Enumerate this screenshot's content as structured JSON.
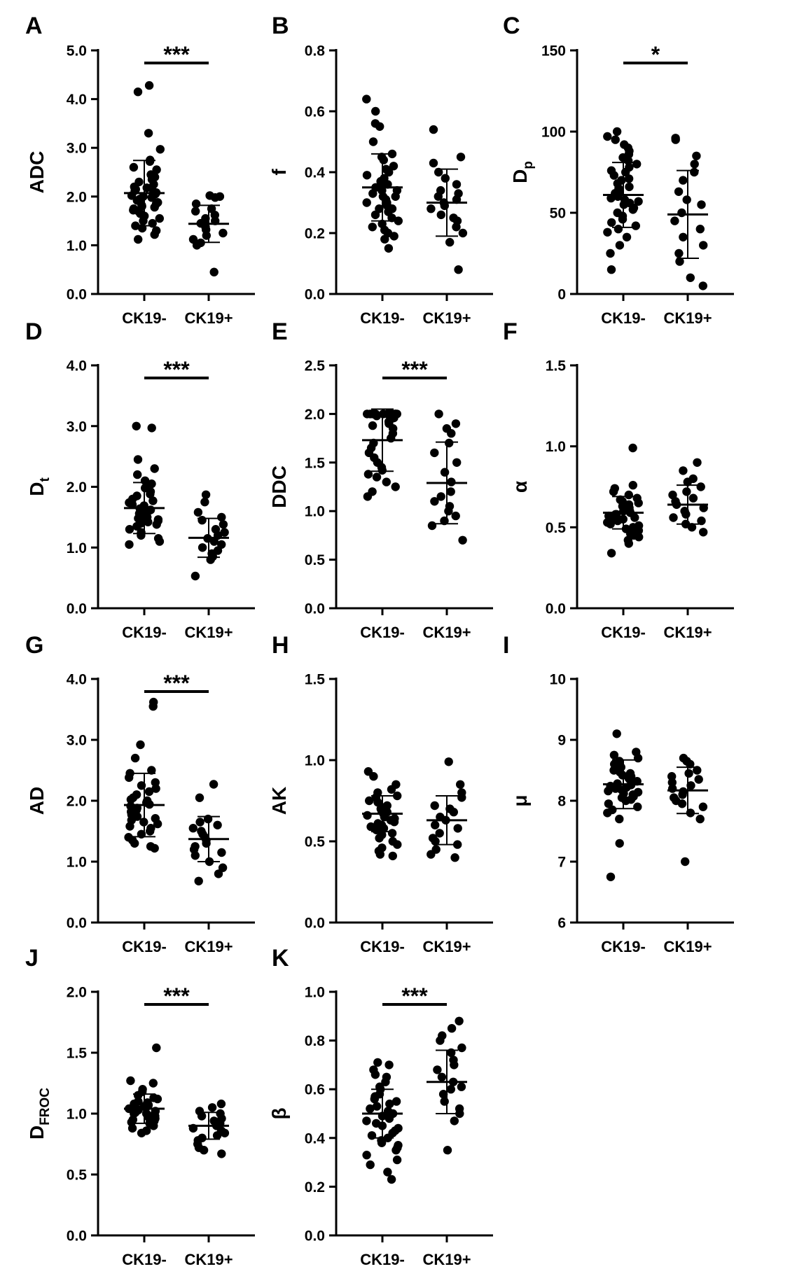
{
  "chart_data": [
    {
      "type": "scatter",
      "panel": "A",
      "ylabel": "ADC",
      "ylabel_sub": "",
      "ylim": [
        0,
        5
      ],
      "yticks": [
        0,
        1,
        2,
        3,
        4,
        5
      ],
      "ytick_labels": [
        "0.0",
        "1.0",
        "2.0",
        "3.0",
        "4.0",
        "5.0"
      ],
      "categories": [
        "CK19-",
        "CK19+"
      ],
      "significance": "***",
      "groups": [
        {
          "mean": 2.07,
          "sd": 0.67,
          "values": [
            4.28,
            4.15,
            3.3,
            2.97,
            2.75,
            2.72,
            2.6,
            2.55,
            2.45,
            2.4,
            2.35,
            2.3,
            2.25,
            2.2,
            2.18,
            2.15,
            2.12,
            2.1,
            2.08,
            2.05,
            2.02,
            2.0,
            1.98,
            1.95,
            1.92,
            1.9,
            1.88,
            1.85,
            1.82,
            1.8,
            1.78,
            1.75,
            1.72,
            1.7,
            1.65,
            1.6,
            1.55,
            1.5,
            1.45,
            1.4,
            1.35,
            1.3,
            1.22,
            1.12
          ]
        },
        {
          "mean": 1.44,
          "sd": 0.38,
          "values": [
            2.02,
            2.0,
            1.98,
            1.85,
            1.75,
            1.7,
            1.62,
            1.55,
            1.5,
            1.45,
            1.42,
            1.38,
            1.32,
            1.25,
            1.2,
            1.12,
            1.05,
            1.0,
            0.45
          ]
        }
      ]
    },
    {
      "type": "scatter",
      "panel": "B",
      "ylabel": "f",
      "ylabel_sub": "",
      "ylim": [
        0,
        0.8
      ],
      "yticks": [
        0,
        0.2,
        0.4,
        0.6,
        0.8
      ],
      "ytick_labels": [
        "0.0",
        "0.2",
        "0.4",
        "0.6",
        "0.8"
      ],
      "categories": [
        "CK19-",
        "CK19+"
      ],
      "significance": "",
      "groups": [
        {
          "mean": 0.35,
          "sd": 0.11,
          "values": [
            0.64,
            0.6,
            0.56,
            0.55,
            0.5,
            0.46,
            0.45,
            0.44,
            0.42,
            0.41,
            0.4,
            0.39,
            0.38,
            0.37,
            0.36,
            0.36,
            0.35,
            0.34,
            0.34,
            0.33,
            0.32,
            0.32,
            0.31,
            0.3,
            0.3,
            0.29,
            0.28,
            0.28,
            0.27,
            0.26,
            0.25,
            0.24,
            0.23,
            0.22,
            0.21,
            0.2,
            0.19,
            0.18,
            0.15
          ]
        },
        {
          "mean": 0.3,
          "sd": 0.11,
          "values": [
            0.54,
            0.45,
            0.43,
            0.4,
            0.38,
            0.36,
            0.34,
            0.33,
            0.32,
            0.31,
            0.3,
            0.29,
            0.28,
            0.26,
            0.25,
            0.24,
            0.22,
            0.2,
            0.17,
            0.08
          ]
        }
      ]
    },
    {
      "type": "scatter",
      "panel": "C",
      "ylabel": "D",
      "ylabel_sub": "p",
      "ylim": [
        0,
        150
      ],
      "yticks": [
        0,
        50,
        100,
        150
      ],
      "ytick_labels": [
        "0",
        "50",
        "100",
        "150"
      ],
      "categories": [
        "CK19-",
        "CK19+"
      ],
      "significance": "*",
      "groups": [
        {
          "mean": 61,
          "sd": 20,
          "values": [
            100,
            97,
            95,
            92,
            90,
            88,
            86,
            84,
            82,
            80,
            78,
            76,
            75,
            73,
            71,
            70,
            68,
            66,
            65,
            63,
            62,
            60,
            59,
            58,
            57,
            56,
            55,
            53,
            52,
            50,
            48,
            46,
            44,
            42,
            40,
            38,
            35,
            30,
            25,
            15
          ]
        },
        {
          "mean": 49,
          "sd": 27,
          "values": [
            96,
            95,
            85,
            80,
            75,
            70,
            63,
            58,
            55,
            50,
            45,
            40,
            35,
            30,
            25,
            20,
            10,
            5
          ]
        }
      ]
    },
    {
      "type": "scatter",
      "panel": "D",
      "ylabel": "D",
      "ylabel_sub": "t",
      "ylim": [
        0,
        4
      ],
      "yticks": [
        0,
        1,
        2,
        3,
        4
      ],
      "ytick_labels": [
        "0.0",
        "1.0",
        "2.0",
        "3.0",
        "4.0"
      ],
      "categories": [
        "CK19-",
        "CK19+"
      ],
      "significance": "***",
      "groups": [
        {
          "mean": 1.65,
          "sd": 0.42,
          "values": [
            3.0,
            2.97,
            2.45,
            2.3,
            2.2,
            2.1,
            2.05,
            1.98,
            1.92,
            1.88,
            1.85,
            1.8,
            1.77,
            1.74,
            1.71,
            1.69,
            1.66,
            1.64,
            1.62,
            1.6,
            1.58,
            1.56,
            1.54,
            1.52,
            1.5,
            1.48,
            1.46,
            1.44,
            1.42,
            1.4,
            1.38,
            1.35,
            1.3,
            1.25,
            1.2,
            1.15,
            1.1,
            1.05
          ]
        },
        {
          "mean": 1.16,
          "sd": 0.32,
          "values": [
            1.87,
            1.75,
            1.58,
            1.5,
            1.45,
            1.38,
            1.3,
            1.25,
            1.2,
            1.15,
            1.1,
            1.05,
            1.0,
            0.95,
            0.9,
            0.85,
            0.8,
            0.53
          ]
        }
      ]
    },
    {
      "type": "scatter",
      "panel": "E",
      "ylabel": "DDC",
      "ylabel_sub": "",
      "ylim": [
        0,
        2.5
      ],
      "yticks": [
        0,
        0.5,
        1.0,
        1.5,
        2.0,
        2.5
      ],
      "ytick_labels": [
        "0.0",
        "0.5",
        "1.0",
        "1.5",
        "2.0",
        "2.5"
      ],
      "categories": [
        "CK19-",
        "CK19+"
      ],
      "significance": "***",
      "groups": [
        {
          "mean": 1.73,
          "sd": 0.32,
          "values": [
            2.0,
            2.0,
            2.0,
            2.0,
            2.0,
            2.0,
            2.0,
            2.0,
            2.0,
            2.0,
            2.0,
            2.0,
            2.0,
            2.0,
            2.0,
            2.0,
            1.98,
            1.96,
            1.95,
            1.92,
            1.9,
            1.88,
            1.85,
            1.8,
            1.75,
            1.7,
            1.65,
            1.6,
            1.55,
            1.5,
            1.45,
            1.42,
            1.38,
            1.35,
            1.3,
            1.25,
            1.2,
            1.15
          ]
        },
        {
          "mean": 1.29,
          "sd": 0.42,
          "values": [
            2.0,
            1.9,
            1.85,
            1.8,
            1.7,
            1.6,
            1.5,
            1.4,
            1.3,
            1.2,
            1.15,
            1.1,
            1.05,
            1.0,
            0.95,
            0.9,
            0.85,
            0.7
          ]
        }
      ]
    },
    {
      "type": "scatter",
      "panel": "F",
      "ylabel": "α",
      "ylabel_sub": "",
      "ylim": [
        0,
        1.5
      ],
      "yticks": [
        0,
        0.5,
        1.0,
        1.5
      ],
      "ytick_labels": [
        "0.0",
        "0.5",
        "1.0",
        "1.5"
      ],
      "categories": [
        "CK19-",
        "CK19+"
      ],
      "significance": "",
      "groups": [
        {
          "mean": 0.59,
          "sd": 0.1,
          "values": [
            0.99,
            0.76,
            0.74,
            0.72,
            0.7,
            0.68,
            0.67,
            0.66,
            0.65,
            0.64,
            0.63,
            0.62,
            0.61,
            0.6,
            0.6,
            0.59,
            0.58,
            0.58,
            0.57,
            0.56,
            0.56,
            0.55,
            0.54,
            0.53,
            0.52,
            0.51,
            0.5,
            0.49,
            0.48,
            0.47,
            0.46,
            0.45,
            0.44,
            0.42,
            0.4,
            0.34
          ]
        },
        {
          "mean": 0.64,
          "sd": 0.12,
          "values": [
            0.9,
            0.85,
            0.8,
            0.78,
            0.75,
            0.72,
            0.7,
            0.68,
            0.66,
            0.64,
            0.62,
            0.6,
            0.58,
            0.56,
            0.54,
            0.52,
            0.5,
            0.47
          ]
        }
      ]
    },
    {
      "type": "scatter",
      "panel": "G",
      "ylabel": "AD",
      "ylabel_sub": "",
      "ylim": [
        0,
        4
      ],
      "yticks": [
        0,
        1,
        2,
        3,
        4
      ],
      "ytick_labels": [
        "0.0",
        "1.0",
        "2.0",
        "3.0",
        "4.0"
      ],
      "categories": [
        "CK19-",
        "CK19+"
      ],
      "significance": "***",
      "groups": [
        {
          "mean": 1.93,
          "sd": 0.52,
          "values": [
            3.62,
            3.55,
            2.92,
            2.7,
            2.5,
            2.45,
            2.38,
            2.3,
            2.25,
            2.2,
            2.15,
            2.1,
            2.05,
            2.02,
            2.0,
            1.97,
            1.94,
            1.91,
            1.88,
            1.85,
            1.82,
            1.8,
            1.77,
            1.74,
            1.71,
            1.68,
            1.65,
            1.62,
            1.58,
            1.55,
            1.5,
            1.45,
            1.4,
            1.35,
            1.3,
            1.25,
            1.22
          ]
        },
        {
          "mean": 1.37,
          "sd": 0.37,
          "values": [
            2.27,
            2.05,
            1.7,
            1.65,
            1.6,
            1.55,
            1.5,
            1.45,
            1.4,
            1.35,
            1.3,
            1.25,
            1.2,
            1.15,
            1.1,
            1.0,
            0.9,
            0.8,
            0.68
          ]
        }
      ]
    },
    {
      "type": "scatter",
      "panel": "H",
      "ylabel": "AK",
      "ylabel_sub": "",
      "ylim": [
        0,
        1.5
      ],
      "yticks": [
        0,
        0.5,
        1.0,
        1.5
      ],
      "ytick_labels": [
        "0.0",
        "0.5",
        "1.0",
        "1.5"
      ],
      "categories": [
        "CK19-",
        "CK19+"
      ],
      "significance": "",
      "groups": [
        {
          "mean": 0.67,
          "sd": 0.11,
          "values": [
            0.93,
            0.9,
            0.85,
            0.82,
            0.8,
            0.78,
            0.77,
            0.75,
            0.74,
            0.72,
            0.71,
            0.7,
            0.69,
            0.68,
            0.67,
            0.66,
            0.65,
            0.64,
            0.63,
            0.62,
            0.61,
            0.6,
            0.59,
            0.58,
            0.57,
            0.56,
            0.55,
            0.54,
            0.52,
            0.5,
            0.48,
            0.46,
            0.44,
            0.42,
            0.41
          ]
        },
        {
          "mean": 0.63,
          "sd": 0.15,
          "values": [
            0.99,
            0.85,
            0.8,
            0.77,
            0.72,
            0.7,
            0.68,
            0.65,
            0.63,
            0.6,
            0.58,
            0.55,
            0.52,
            0.5,
            0.48,
            0.45,
            0.42,
            0.4
          ]
        }
      ]
    },
    {
      "type": "scatter",
      "panel": "I",
      "ylabel": "μ",
      "ylabel_sub": "",
      "ylim": [
        6,
        10
      ],
      "yticks": [
        6,
        7,
        8,
        9,
        10
      ],
      "ytick_labels": [
        "6",
        "7",
        "8",
        "9",
        "10"
      ],
      "categories": [
        "CK19-",
        "CK19+"
      ],
      "significance": "",
      "groups": [
        {
          "mean": 8.27,
          "sd": 0.4,
          "values": [
            9.1,
            8.8,
            8.75,
            8.7,
            8.65,
            8.6,
            8.55,
            8.5,
            8.47,
            8.45,
            8.42,
            8.4,
            8.37,
            8.35,
            8.32,
            8.3,
            8.28,
            8.26,
            8.24,
            8.22,
            8.2,
            8.18,
            8.16,
            8.14,
            8.12,
            8.1,
            8.07,
            8.05,
            8.02,
            8.0,
            7.95,
            7.9,
            7.85,
            7.8,
            7.7,
            7.3,
            6.75
          ]
        },
        {
          "mean": 8.17,
          "sd": 0.38,
          "values": [
            8.7,
            8.65,
            8.6,
            8.5,
            8.45,
            8.4,
            8.35,
            8.3,
            8.25,
            8.2,
            8.15,
            8.1,
            8.05,
            8.0,
            7.95,
            7.9,
            7.8,
            7.7,
            7.0
          ]
        }
      ]
    },
    {
      "type": "scatter",
      "panel": "J",
      "ylabel": "D",
      "ylabel_sub": "FROC",
      "ylim": [
        0,
        2
      ],
      "yticks": [
        0,
        0.5,
        1.0,
        1.5,
        2.0
      ],
      "ytick_labels": [
        "0.0",
        "0.5",
        "1.0",
        "1.5",
        "2.0"
      ],
      "categories": [
        "CK19-",
        "CK19+"
      ],
      "significance": "***",
      "groups": [
        {
          "mean": 1.04,
          "sd": 0.12,
          "values": [
            1.54,
            1.27,
            1.25,
            1.2,
            1.18,
            1.15,
            1.13,
            1.12,
            1.1,
            1.09,
            1.08,
            1.07,
            1.06,
            1.05,
            1.04,
            1.03,
            1.03,
            1.02,
            1.01,
            1.0,
            1.0,
            0.99,
            0.98,
            0.97,
            0.96,
            0.95,
            0.94,
            0.93,
            0.92,
            0.9,
            0.88,
            0.86,
            0.84
          ]
        },
        {
          "mean": 0.9,
          "sd": 0.11,
          "values": [
            1.08,
            1.05,
            1.02,
            1.0,
            0.98,
            0.96,
            0.94,
            0.92,
            0.9,
            0.88,
            0.86,
            0.84,
            0.82,
            0.8,
            0.78,
            0.75,
            0.72,
            0.7,
            0.67
          ]
        }
      ]
    },
    {
      "type": "scatter",
      "panel": "K",
      "ylabel": "β",
      "ylabel_sub": "",
      "ylim": [
        0,
        1
      ],
      "yticks": [
        0,
        0.2,
        0.4,
        0.6,
        0.8,
        1.0
      ],
      "ytick_labels": [
        "0.0",
        "0.2",
        "0.4",
        "0.6",
        "0.8",
        "1.0"
      ],
      "categories": [
        "CK19-",
        "CK19+"
      ],
      "significance": "***",
      "groups": [
        {
          "mean": 0.5,
          "sd": 0.1,
          "values": [
            0.71,
            0.7,
            0.68,
            0.66,
            0.65,
            0.63,
            0.61,
            0.6,
            0.58,
            0.57,
            0.56,
            0.55,
            0.54,
            0.53,
            0.52,
            0.51,
            0.5,
            0.49,
            0.48,
            0.47,
            0.46,
            0.45,
            0.44,
            0.43,
            0.42,
            0.41,
            0.4,
            0.39,
            0.38,
            0.37,
            0.36,
            0.35,
            0.33,
            0.31,
            0.29,
            0.26,
            0.23
          ]
        },
        {
          "mean": 0.63,
          "sd": 0.13,
          "values": [
            0.88,
            0.85,
            0.82,
            0.8,
            0.77,
            0.75,
            0.72,
            0.7,
            0.68,
            0.65,
            0.63,
            0.61,
            0.6,
            0.58,
            0.55,
            0.52,
            0.5,
            0.47,
            0.35
          ]
        }
      ]
    }
  ]
}
